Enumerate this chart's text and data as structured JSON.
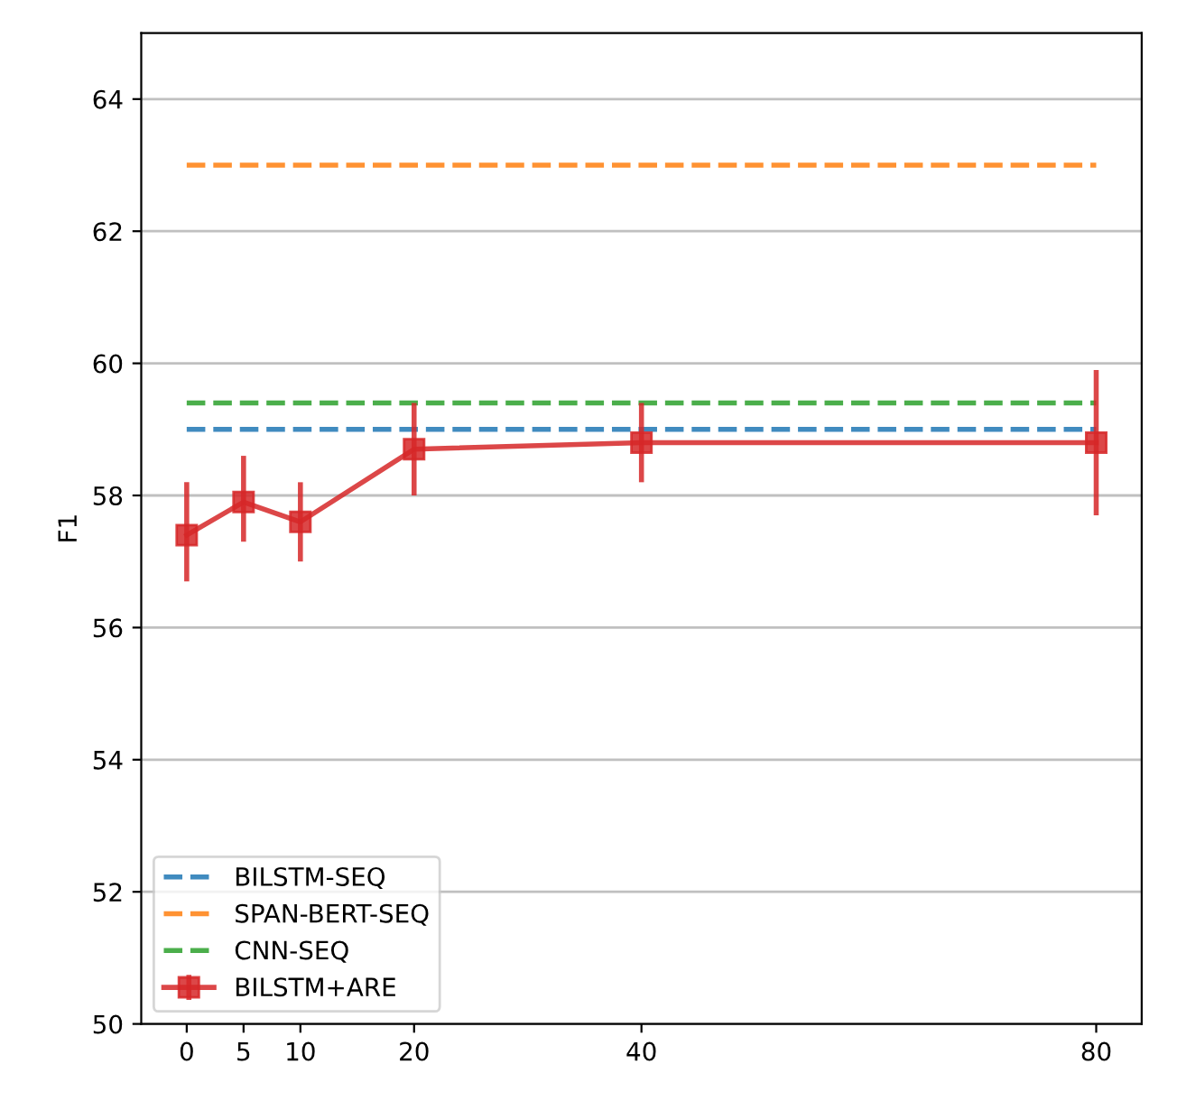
{
  "chart_data": {
    "type": "line",
    "ylabel": "F1",
    "xlim": [
      -4,
      84
    ],
    "xticks": [
      0,
      5,
      10,
      20,
      40,
      80
    ],
    "ylim": [
      50,
      65
    ],
    "yticks": [
      50,
      52,
      54,
      56,
      58,
      60,
      62,
      64
    ],
    "grid": "y",
    "legend": "bottom left",
    "series": [
      {
        "name": "BILSTM-SEQ",
        "color": "#1f77b4",
        "x": [
          0,
          80
        ],
        "values": [
          59.0,
          59.0
        ],
        "line_style": "dashed",
        "marker": "none"
      },
      {
        "name": "SPAN-BERT-SEQ",
        "color": "#ff7f0e",
        "x": [
          0,
          80
        ],
        "values": [
          63.0,
          63.0
        ],
        "line_style": "dashed",
        "marker": "none"
      },
      {
        "name": "CNN-SEQ",
        "color": "#2ca02c",
        "x": [
          0,
          80
        ],
        "values": [
          59.4,
          59.4
        ],
        "line_style": "dashed",
        "marker": "none"
      },
      {
        "name": "BILSTM+ARE",
        "color": "#d62728",
        "x": [
          0,
          5,
          10,
          20,
          40,
          80
        ],
        "values": [
          57.4,
          57.9,
          57.6,
          58.7,
          58.8,
          58.8
        ],
        "line_style": "solid",
        "marker": "square",
        "errors": [
          [
            56.7,
            58.2
          ],
          [
            57.3,
            58.6
          ],
          [
            57.0,
            58.2
          ],
          [
            58.0,
            59.4
          ],
          [
            58.2,
            59.4
          ],
          [
            57.7,
            59.9
          ]
        ]
      }
    ]
  }
}
